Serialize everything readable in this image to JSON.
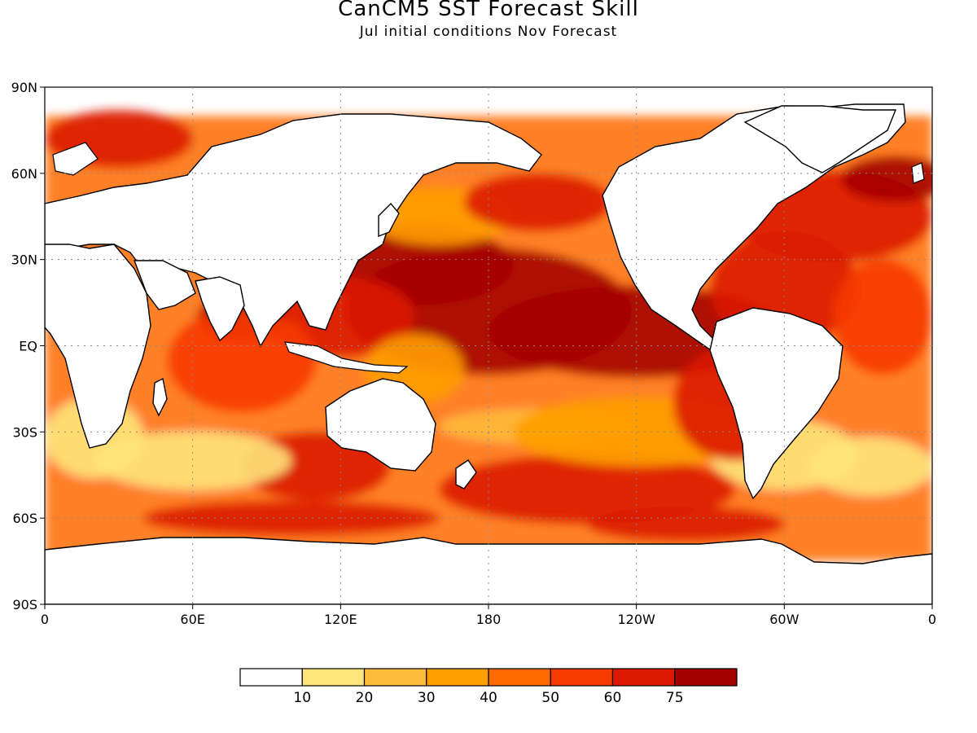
{
  "title": "CanCM5 SST Forecast Skill",
  "subtitle": "Jul initial conditions   Nov Forecast",
  "map": {
    "lon_range": [
      0,
      360
    ],
    "lat_range": [
      -90,
      90
    ],
    "grid": true,
    "lat_ticks": [
      {
        "value": 90,
        "label": "90N"
      },
      {
        "value": 60,
        "label": "60N"
      },
      {
        "value": 30,
        "label": "30N"
      },
      {
        "value": 0,
        "label": "EQ"
      },
      {
        "value": -30,
        "label": "30S"
      },
      {
        "value": -60,
        "label": "60S"
      },
      {
        "value": -90,
        "label": "90S"
      }
    ],
    "lon_ticks": [
      {
        "value": 0,
        "label": "0"
      },
      {
        "value": 60,
        "label": "60E"
      },
      {
        "value": 120,
        "label": "120E"
      },
      {
        "value": 180,
        "label": "180"
      },
      {
        "value": 240,
        "label": "120W"
      },
      {
        "value": 300,
        "label": "60W"
      },
      {
        "value": 360,
        "label": "0"
      }
    ]
  },
  "colorbar": {
    "colors": [
      "#ffffff",
      "#ffe57a",
      "#ffbb3a",
      "#ff9f00",
      "#ff6a00",
      "#f73a00",
      "#dc1a00",
      "#a50000"
    ],
    "labels": [
      "10",
      "20",
      "30",
      "40",
      "50",
      "60",
      "75"
    ]
  }
}
